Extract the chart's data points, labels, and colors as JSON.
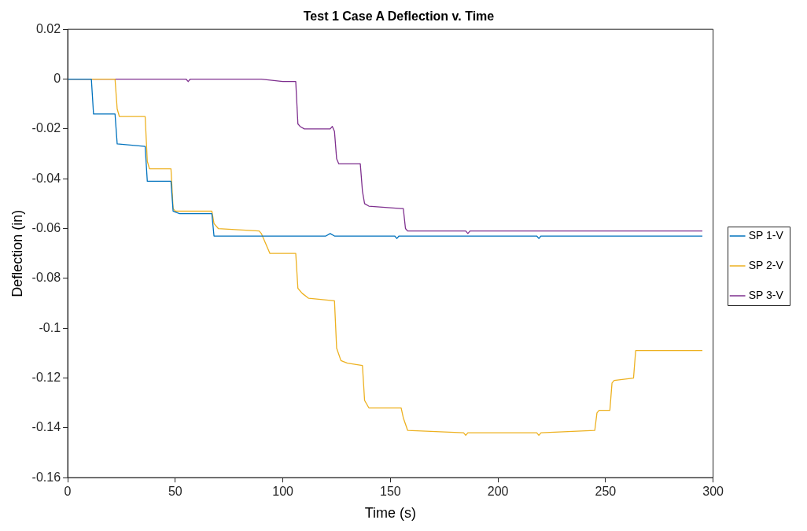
{
  "chart_data": {
    "type": "line",
    "title": "Test 1 Case A Deflection v. Time",
    "xlabel": "Time (s)",
    "ylabel": "Deflection (in)",
    "xlim": [
      0,
      300
    ],
    "xticks": [
      0,
      50,
      100,
      150,
      200,
      250,
      300
    ],
    "ylim": [
      -0.16,
      0.02
    ],
    "yticks": [
      0.02,
      0,
      -0.02,
      -0.04,
      -0.06,
      -0.08,
      -0.1,
      -0.12,
      -0.14,
      -0.16
    ],
    "grid": false,
    "legend": "right",
    "marker": "none",
    "line_style": "solid",
    "series": [
      {
        "name": "SP 1-V",
        "color": "#0072bd",
        "x": [
          0,
          11,
          12,
          22,
          23,
          36,
          37,
          48,
          49,
          52,
          67,
          68,
          120,
          122,
          124,
          152,
          153,
          154,
          218,
          219,
          220,
          295
        ],
        "values": [
          0,
          0,
          -0.014,
          -0.014,
          -0.026,
          -0.027,
          -0.041,
          -0.041,
          -0.053,
          -0.054,
          -0.054,
          -0.063,
          -0.063,
          -0.062,
          -0.063,
          -0.063,
          -0.064,
          -0.063,
          -0.063,
          -0.064,
          -0.063,
          -0.063
        ]
      },
      {
        "name": "SP 2-V",
        "color": "#edb120",
        "x": [
          0,
          22,
          23,
          24,
          35,
          36,
          37,
          38,
          48,
          49,
          50,
          67,
          68,
          70,
          89,
          90,
          92,
          94,
          106,
          107,
          109,
          112,
          124,
          125,
          127,
          130,
          137,
          138,
          140,
          155,
          156,
          158,
          184,
          185,
          186,
          218,
          219,
          220,
          245,
          246,
          247,
          252,
          253,
          254,
          263,
          264,
          295
        ],
        "values": [
          0,
          0,
          -0.012,
          -0.015,
          -0.015,
          -0.015,
          -0.033,
          -0.036,
          -0.036,
          -0.052,
          -0.053,
          -0.053,
          -0.058,
          -0.06,
          -0.061,
          -0.062,
          -0.066,
          -0.07,
          -0.07,
          -0.084,
          -0.086,
          -0.088,
          -0.089,
          -0.108,
          -0.113,
          -0.114,
          -0.115,
          -0.129,
          -0.132,
          -0.132,
          -0.136,
          -0.141,
          -0.142,
          -0.143,
          -0.142,
          -0.142,
          -0.143,
          -0.142,
          -0.141,
          -0.134,
          -0.133,
          -0.133,
          -0.122,
          -0.121,
          -0.12,
          -0.109,
          -0.109
        ]
      },
      {
        "name": "SP 3-V",
        "color": "#7e2f8e",
        "x": [
          0,
          55,
          56,
          57,
          90,
          100,
          105,
          106,
          107,
          108,
          110,
          122,
          123,
          124,
          125,
          126,
          127,
          136,
          137,
          138,
          140,
          155,
          156,
          157,
          158,
          185,
          186,
          187,
          295
        ],
        "values": [
          0,
          0,
          -0.001,
          0,
          0,
          -0.001,
          -0.001,
          -0.001,
          -0.018,
          -0.019,
          -0.02,
          -0.02,
          -0.019,
          -0.021,
          -0.032,
          -0.034,
          -0.034,
          -0.034,
          -0.045,
          -0.05,
          -0.051,
          -0.052,
          -0.052,
          -0.06,
          -0.061,
          -0.061,
          -0.062,
          -0.061,
          -0.061
        ]
      }
    ]
  }
}
